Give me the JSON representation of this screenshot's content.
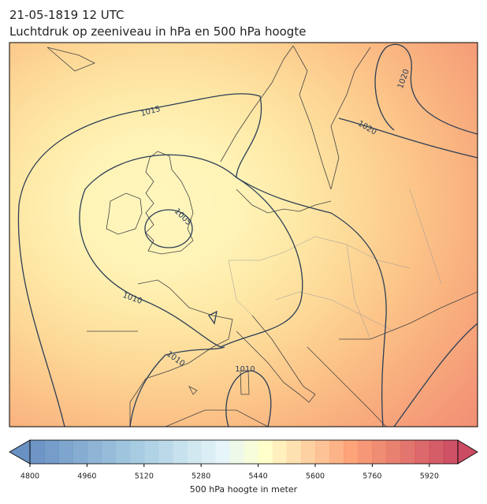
{
  "title": {
    "line1": "21-05-1819 12 UTC",
    "line2": "Luchtdruk op zeeniveau in hPa en 500 hPa hoogte"
  },
  "isobar_labels": [
    "1015",
    "1020",
    "1020",
    "1005",
    "1010",
    "1010",
    "1010"
  ],
  "colorbar": {
    "label": "500 hPa hoogte in meter",
    "range": [
      4800,
      6000
    ],
    "ticks": [
      4800,
      4960,
      5120,
      5280,
      5440,
      5600,
      5760,
      5920
    ]
  }
}
